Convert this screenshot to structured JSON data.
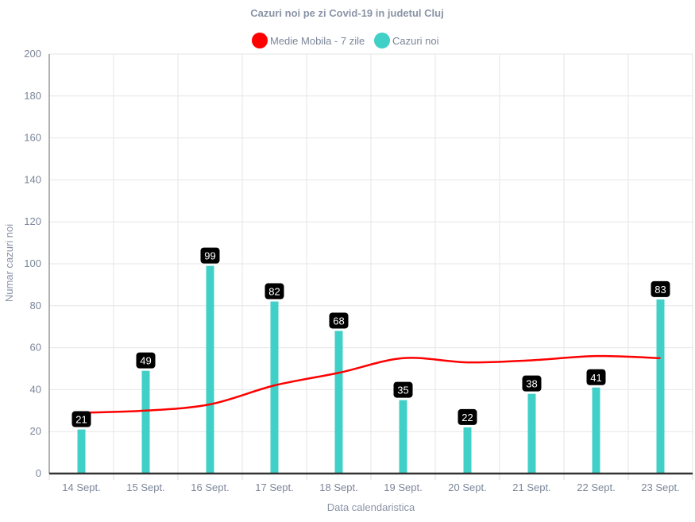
{
  "chart_data": {
    "type": "bar",
    "title": "Cazuri noi pe zi Covid-19 in judetul Cluj",
    "xlabel": "Data calendaristica",
    "ylabel": "Numar cazuri noi",
    "ylim": [
      0,
      200
    ],
    "yticks": [
      0,
      20,
      40,
      60,
      80,
      100,
      120,
      140,
      160,
      180,
      200
    ],
    "grid": true,
    "legend_position": "top",
    "categories": [
      "14 Sept.",
      "15 Sept.",
      "16 Sept.",
      "17 Sept.",
      "18 Sept.",
      "19 Sept.",
      "20 Sept.",
      "21 Sept.",
      "22 Sept.",
      "23 Sept."
    ],
    "series": [
      {
        "name": "Medie Mobila - 7 zile",
        "type": "line",
        "color": "#ff0000",
        "values": [
          29,
          30,
          33,
          42,
          48,
          55,
          53,
          54,
          56,
          55
        ]
      },
      {
        "name": "Cazuri noi",
        "type": "bar",
        "color": "#40d0c8",
        "values": [
          21,
          49,
          99,
          82,
          68,
          35,
          22,
          38,
          41,
          83
        ]
      }
    ]
  }
}
